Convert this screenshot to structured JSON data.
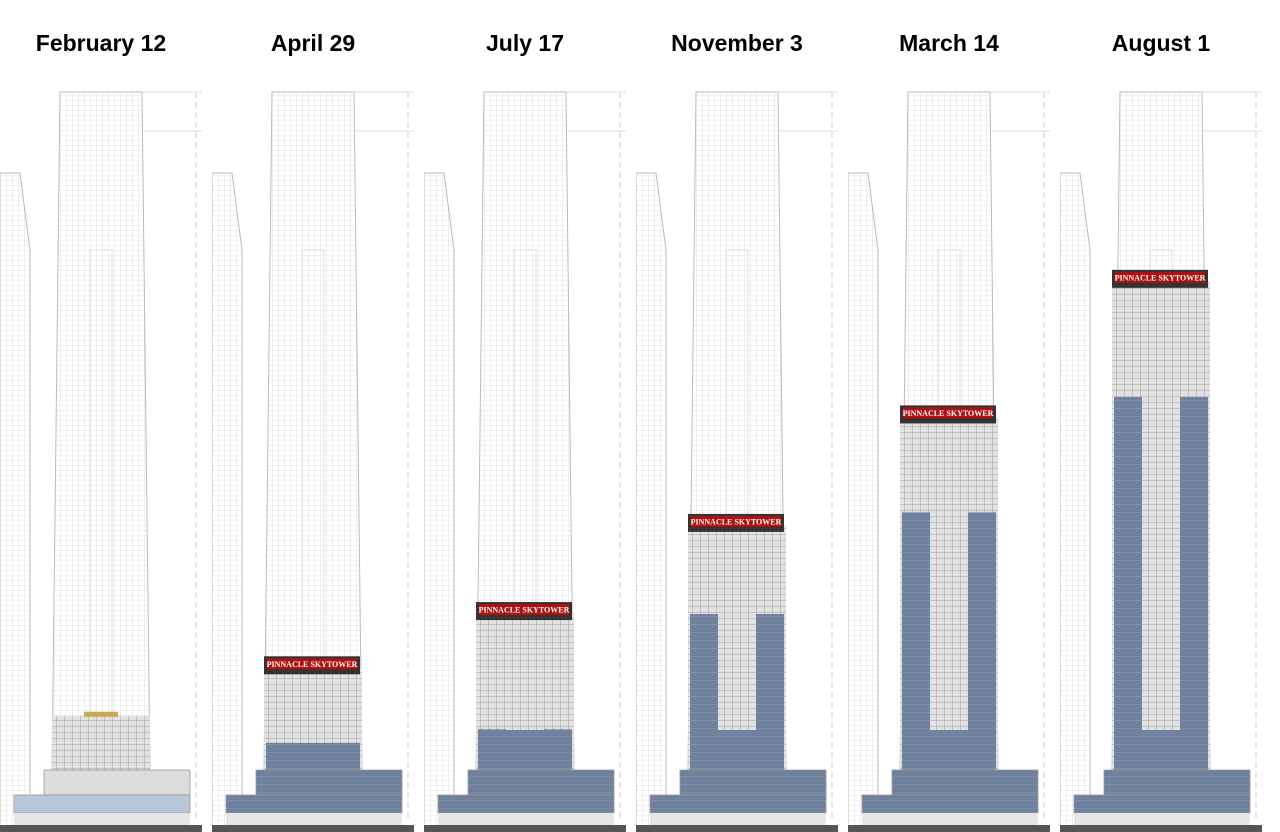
{
  "sign_text": "PINNACLE SKYTOWER",
  "colors": {
    "sign": "#b01010",
    "cladding": "#6f819c",
    "structure": "#9a9a9a",
    "ground": "#555555",
    "crown": "#c8a850"
  },
  "panels": [
    {
      "date": "February 12",
      "built_fraction": 0.08,
      "clad_fraction": 0.0,
      "sign": false
    },
    {
      "date": "April 29",
      "built_fraction": 0.15,
      "clad_fraction": 0.04,
      "sign": true
    },
    {
      "date": "July 17",
      "built_fraction": 0.23,
      "clad_fraction": 0.06,
      "sign": true
    },
    {
      "date": "November 3",
      "built_fraction": 0.36,
      "clad_fraction": 0.23,
      "sign": true
    },
    {
      "date": "March 14",
      "built_fraction": 0.52,
      "clad_fraction": 0.38,
      "sign": true
    },
    {
      "date": "August 1",
      "built_fraction": 0.72,
      "clad_fraction": 0.55,
      "sign": true
    }
  ]
}
